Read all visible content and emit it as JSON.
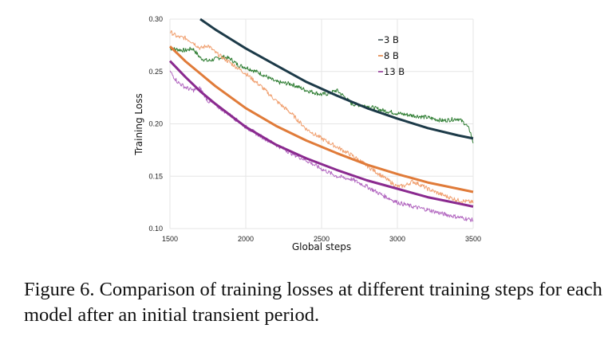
{
  "chart_data": {
    "type": "line",
    "title": "",
    "xlabel": "Global steps",
    "ylabel": "Training Loss",
    "xlim": [
      1500,
      3500
    ],
    "ylim": [
      0.1,
      0.3
    ],
    "xticks": [
      1500,
      2000,
      2500,
      3000,
      3500
    ],
    "xtick_labels": [
      "1500",
      "2000",
      "2500",
      "3000",
      "3500"
    ],
    "yticks": [
      0.1,
      0.15,
      0.2,
      0.25,
      0.3
    ],
    "ytick_labels": [
      "0.10",
      "0.15",
      "0.20",
      "0.25",
      "0.30"
    ],
    "grid": true,
    "legend": {
      "placement": "top-right",
      "entries": [
        "3 B",
        "8 B",
        "13 B"
      ]
    },
    "series": [
      {
        "name": "3 B",
        "kind": "raw",
        "color": "#2e7d32",
        "x": [
          1500,
          1550,
          1600,
          1650,
          1700,
          1750,
          1800,
          1850,
          1900,
          1950,
          2000,
          2100,
          2200,
          2300,
          2400,
          2500,
          2550,
          2600,
          2650,
          2700,
          2800,
          2900,
          3000,
          3100,
          3200,
          3300,
          3400,
          3450,
          3480,
          3500
        ],
        "y": [
          0.272,
          0.271,
          0.27,
          0.272,
          0.263,
          0.26,
          0.262,
          0.264,
          0.262,
          0.256,
          0.254,
          0.248,
          0.24,
          0.238,
          0.232,
          0.228,
          0.229,
          0.232,
          0.226,
          0.219,
          0.217,
          0.213,
          0.21,
          0.208,
          0.206,
          0.203,
          0.205,
          0.2,
          0.193,
          0.182
        ]
      },
      {
        "name": "8 B",
        "kind": "raw",
        "color": "#f0a070",
        "x": [
          1500,
          1550,
          1600,
          1650,
          1700,
          1750,
          1800,
          1900,
          2000,
          2100,
          2200,
          2300,
          2400,
          2500,
          2600,
          2700,
          2800,
          2900,
          3000,
          3050,
          3100,
          3150,
          3200,
          3300,
          3400,
          3500
        ],
        "y": [
          0.288,
          0.283,
          0.282,
          0.278,
          0.272,
          0.275,
          0.268,
          0.258,
          0.248,
          0.236,
          0.222,
          0.21,
          0.195,
          0.186,
          0.178,
          0.17,
          0.16,
          0.15,
          0.14,
          0.141,
          0.145,
          0.142,
          0.138,
          0.132,
          0.127,
          0.125
        ]
      },
      {
        "name": "13 B",
        "kind": "raw",
        "color": "#b267c0",
        "x": [
          1500,
          1550,
          1600,
          1650,
          1700,
          1750,
          1800,
          1900,
          2000,
          2100,
          2200,
          2300,
          2400,
          2500,
          2600,
          2700,
          2800,
          2900,
          3000,
          3100,
          3200,
          3300,
          3400,
          3500
        ],
        "y": [
          0.25,
          0.24,
          0.235,
          0.232,
          0.234,
          0.222,
          0.218,
          0.208,
          0.197,
          0.188,
          0.18,
          0.172,
          0.165,
          0.157,
          0.15,
          0.147,
          0.14,
          0.132,
          0.125,
          0.121,
          0.118,
          0.114,
          0.111,
          0.108
        ]
      },
      {
        "name": "3 B fit",
        "kind": "fit",
        "color": "#1c3a48",
        "x": [
          1700,
          1800,
          1900,
          2000,
          2200,
          2400,
          2600,
          2800,
          3000,
          3200,
          3400,
          3500
        ],
        "y": [
          0.3,
          0.29,
          0.281,
          0.272,
          0.256,
          0.24,
          0.227,
          0.215,
          0.205,
          0.196,
          0.189,
          0.186
        ]
      },
      {
        "name": "8 B fit",
        "kind": "fit",
        "color": "#e07b39",
        "x": [
          1500,
          1600,
          1700,
          1800,
          2000,
          2200,
          2400,
          2600,
          2800,
          3000,
          3200,
          3400,
          3500
        ],
        "y": [
          0.274,
          0.26,
          0.248,
          0.236,
          0.215,
          0.198,
          0.184,
          0.172,
          0.161,
          0.152,
          0.144,
          0.138,
          0.135
        ]
      },
      {
        "name": "13 B fit",
        "kind": "fit",
        "color": "#8a2a8f",
        "x": [
          1500,
          1600,
          1700,
          1800,
          2000,
          2200,
          2400,
          2600,
          2800,
          3000,
          3200,
          3400,
          3500
        ],
        "y": [
          0.26,
          0.245,
          0.231,
          0.219,
          0.197,
          0.18,
          0.167,
          0.156,
          0.146,
          0.138,
          0.13,
          0.124,
          0.121
        ]
      }
    ]
  },
  "caption": {
    "text": "Figure 6. Comparison of training losses at different training steps for each model after an initial transient period."
  }
}
